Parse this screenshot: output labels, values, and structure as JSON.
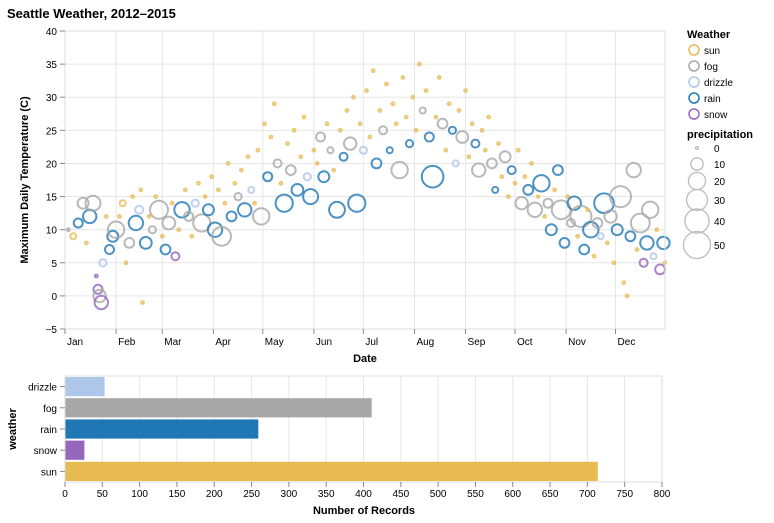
{
  "title": "Seattle Weather, 2012–2015",
  "chart_data": [
    {
      "type": "scatter",
      "title": "Seattle Weather, 2012–2015",
      "xlabel": "Date",
      "ylabel": "Maximum Daily Temperature (C)",
      "x_ticks": [
        "Jan",
        "Feb",
        "Mar",
        "Apr",
        "May",
        "Jun",
        "Jul",
        "Aug",
        "Sep",
        "Oct",
        "Nov",
        "Dec"
      ],
      "x_domain_days": [
        1,
        365
      ],
      "y_ticks": [
        -5,
        0,
        5,
        10,
        15,
        20,
        25,
        30,
        35,
        40
      ],
      "ylim": [
        -5,
        40
      ],
      "grid": true,
      "legend_position": "right",
      "color_legend": {
        "title": "Weather",
        "items": [
          {
            "label": "sun",
            "color": "#e7ba52"
          },
          {
            "label": "fog",
            "color": "#a7a7a7"
          },
          {
            "label": "drizzle",
            "color": "#aec7e8"
          },
          {
            "label": "rain",
            "color": "#1f77b4"
          },
          {
            "label": "snow",
            "color": "#9467bd"
          }
        ]
      },
      "size_legend": {
        "title": "precipitation",
        "values": [
          0,
          10,
          20,
          30,
          40,
          50
        ],
        "labels": [
          "0",
          "10",
          "20",
          "30",
          "40",
          "50"
        ]
      },
      "points": [
        [
          3,
          10,
          0,
          "fog"
        ],
        [
          6,
          9,
          2,
          "sun"
        ],
        [
          9,
          11,
          5,
          "rain"
        ],
        [
          12,
          14,
          8,
          "fog"
        ],
        [
          14,
          8,
          0,
          "sun"
        ],
        [
          16,
          12,
          12,
          "rain"
        ],
        [
          18,
          14,
          15,
          "fog"
        ],
        [
          20,
          3,
          0,
          "snow"
        ],
        [
          21,
          1,
          5,
          "snow"
        ],
        [
          22,
          0,
          10,
          "fog"
        ],
        [
          23,
          -1,
          12,
          "snow"
        ],
        [
          24,
          5,
          3,
          "drizzle"
        ],
        [
          26,
          12,
          0,
          "sun"
        ],
        [
          28,
          7,
          5,
          "rain"
        ],
        [
          30,
          9,
          8,
          "rain"
        ],
        [
          32,
          10,
          18,
          "fog"
        ],
        [
          34,
          12,
          0,
          "sun"
        ],
        [
          36,
          14,
          2,
          "sun"
        ],
        [
          38,
          5,
          0,
          "sun"
        ],
        [
          40,
          8,
          6,
          "fog"
        ],
        [
          42,
          15,
          0,
          "sun"
        ],
        [
          44,
          11,
          14,
          "rain"
        ],
        [
          46,
          13,
          4,
          "drizzle"
        ],
        [
          47,
          16,
          0,
          "sun"
        ],
        [
          48,
          -1,
          0,
          "sun"
        ],
        [
          50,
          8,
          9,
          "rain"
        ],
        [
          52,
          12,
          0,
          "sun"
        ],
        [
          54,
          10,
          3,
          "fog"
        ],
        [
          56,
          15,
          0,
          "sun"
        ],
        [
          58,
          13,
          22,
          "fog"
        ],
        [
          60,
          9,
          0,
          "sun"
        ],
        [
          62,
          7,
          6,
          "rain"
        ],
        [
          64,
          11,
          11,
          "fog"
        ],
        [
          66,
          14,
          0,
          "sun"
        ],
        [
          68,
          6,
          4,
          "snow"
        ],
        [
          70,
          10,
          0,
          "sun"
        ],
        [
          72,
          13,
          16,
          "rain"
        ],
        [
          74,
          16,
          0,
          "sun"
        ],
        [
          76,
          12,
          5,
          "fog"
        ],
        [
          78,
          9,
          0,
          "sun"
        ],
        [
          80,
          14,
          3,
          "drizzle"
        ],
        [
          82,
          17,
          0,
          "sun"
        ],
        [
          84,
          11,
          20,
          "fog"
        ],
        [
          86,
          15,
          0,
          "sun"
        ],
        [
          88,
          13,
          8,
          "rain"
        ],
        [
          90,
          18,
          0,
          "sun"
        ],
        [
          92,
          10,
          14,
          "rain"
        ],
        [
          94,
          16,
          0,
          "sun"
        ],
        [
          96,
          9,
          24,
          "fog"
        ],
        [
          98,
          14,
          0,
          "sun"
        ],
        [
          100,
          20,
          0,
          "sun"
        ],
        [
          102,
          12,
          6,
          "rain"
        ],
        [
          104,
          17,
          0,
          "sun"
        ],
        [
          106,
          15,
          3,
          "fog"
        ],
        [
          108,
          19,
          0,
          "sun"
        ],
        [
          110,
          13,
          12,
          "rain"
        ],
        [
          112,
          21,
          0,
          "sun"
        ],
        [
          114,
          16,
          2,
          "drizzle"
        ],
        [
          116,
          14,
          0,
          "sun"
        ],
        [
          118,
          22,
          0,
          "sun"
        ],
        [
          120,
          12,
          18,
          "fog"
        ],
        [
          122,
          26,
          0,
          "sun"
        ],
        [
          124,
          18,
          5,
          "rain"
        ],
        [
          126,
          24,
          0,
          "sun"
        ],
        [
          128,
          29,
          0,
          "sun"
        ],
        [
          130,
          20,
          4,
          "fog"
        ],
        [
          132,
          17,
          0,
          "sun"
        ],
        [
          134,
          14,
          20,
          "rain"
        ],
        [
          136,
          23,
          0,
          "sun"
        ],
        [
          138,
          19,
          6,
          "fog"
        ],
        [
          140,
          25,
          0,
          "sun"
        ],
        [
          142,
          16,
          9,
          "rain"
        ],
        [
          144,
          21,
          0,
          "sun"
        ],
        [
          146,
          27,
          0,
          "sun"
        ],
        [
          148,
          18,
          3,
          "drizzle"
        ],
        [
          150,
          15,
          15,
          "rain"
        ],
        [
          152,
          22,
          0,
          "sun"
        ],
        [
          154,
          20,
          0,
          "sun"
        ],
        [
          156,
          24,
          5,
          "fog"
        ],
        [
          158,
          18,
          8,
          "rain"
        ],
        [
          160,
          26,
          0,
          "sun"
        ],
        [
          162,
          22,
          2,
          "fog"
        ],
        [
          164,
          19,
          0,
          "sun"
        ],
        [
          166,
          13,
          17,
          "rain"
        ],
        [
          168,
          25,
          0,
          "sun"
        ],
        [
          170,
          21,
          4,
          "rain"
        ],
        [
          172,
          28,
          0,
          "sun"
        ],
        [
          174,
          23,
          10,
          "fog"
        ],
        [
          176,
          30,
          0,
          "sun"
        ],
        [
          178,
          14,
          20,
          "rain"
        ],
        [
          180,
          26,
          0,
          "sun"
        ],
        [
          182,
          22,
          3,
          "drizzle"
        ],
        [
          184,
          31,
          0,
          "sun"
        ],
        [
          186,
          24,
          0,
          "sun"
        ],
        [
          188,
          34,
          0,
          "sun"
        ],
        [
          190,
          20,
          6,
          "rain"
        ],
        [
          192,
          28,
          0,
          "sun"
        ],
        [
          194,
          25,
          4,
          "fog"
        ],
        [
          196,
          32,
          0,
          "sun"
        ],
        [
          198,
          22,
          2,
          "rain"
        ],
        [
          200,
          29,
          0,
          "sun"
        ],
        [
          202,
          26,
          0,
          "sun"
        ],
        [
          204,
          19,
          18,
          "fog"
        ],
        [
          206,
          33,
          0,
          "sun"
        ],
        [
          208,
          27,
          0,
          "sun"
        ],
        [
          210,
          23,
          3,
          "rain"
        ],
        [
          212,
          30,
          0,
          "sun"
        ],
        [
          214,
          25,
          0,
          "sun"
        ],
        [
          216,
          35,
          0,
          "sun"
        ],
        [
          218,
          28,
          2,
          "fog"
        ],
        [
          220,
          31,
          0,
          "sun"
        ],
        [
          222,
          24,
          5,
          "rain"
        ],
        [
          224,
          18,
          32,
          "rain"
        ],
        [
          226,
          27,
          0,
          "sun"
        ],
        [
          228,
          33,
          0,
          "sun"
        ],
        [
          230,
          26,
          6,
          "fog"
        ],
        [
          232,
          22,
          0,
          "sun"
        ],
        [
          234,
          29,
          0,
          "sun"
        ],
        [
          236,
          25,
          3,
          "rain"
        ],
        [
          238,
          20,
          2,
          "drizzle"
        ],
        [
          240,
          28,
          0,
          "sun"
        ],
        [
          242,
          24,
          9,
          "fog"
        ],
        [
          244,
          31,
          0,
          "sun"
        ],
        [
          246,
          21,
          0,
          "sun"
        ],
        [
          248,
          26,
          0,
          "sun"
        ],
        [
          250,
          23,
          4,
          "rain"
        ],
        [
          252,
          19,
          12,
          "fog"
        ],
        [
          254,
          25,
          0,
          "sun"
        ],
        [
          256,
          22,
          0,
          "sun"
        ],
        [
          258,
          27,
          0,
          "sun"
        ],
        [
          260,
          20,
          6,
          "fog"
        ],
        [
          262,
          16,
          2,
          "rain"
        ],
        [
          264,
          23,
          0,
          "sun"
        ],
        [
          266,
          18,
          0,
          "sun"
        ],
        [
          268,
          21,
          8,
          "fog"
        ],
        [
          270,
          15,
          0,
          "sun"
        ],
        [
          272,
          19,
          4,
          "rain"
        ],
        [
          274,
          17,
          0,
          "sun"
        ],
        [
          276,
          22,
          0,
          "sun"
        ],
        [
          278,
          14,
          10,
          "fog"
        ],
        [
          280,
          18,
          0,
          "sun"
        ],
        [
          282,
          16,
          6,
          "rain"
        ],
        [
          284,
          20,
          0,
          "sun"
        ],
        [
          286,
          13,
          14,
          "fog"
        ],
        [
          288,
          15,
          0,
          "sun"
        ],
        [
          290,
          17,
          18,
          "rain"
        ],
        [
          292,
          12,
          0,
          "sun"
        ],
        [
          294,
          14,
          5,
          "fog"
        ],
        [
          296,
          10,
          8,
          "rain"
        ],
        [
          298,
          16,
          0,
          "sun"
        ],
        [
          300,
          19,
          6,
          "rain"
        ],
        [
          302,
          13,
          24,
          "fog"
        ],
        [
          304,
          8,
          6,
          "rain"
        ],
        [
          306,
          15,
          0,
          "sun"
        ],
        [
          308,
          11,
          4,
          "fog"
        ],
        [
          310,
          14,
          12,
          "rain"
        ],
        [
          312,
          9,
          0,
          "sun"
        ],
        [
          314,
          12,
          30,
          "fog"
        ],
        [
          316,
          7,
          6,
          "rain"
        ],
        [
          318,
          13,
          0,
          "sun"
        ],
        [
          320,
          10,
          16,
          "rain"
        ],
        [
          322,
          6,
          0,
          "sun"
        ],
        [
          324,
          11,
          6,
          "fog"
        ],
        [
          326,
          9,
          2,
          "drizzle"
        ],
        [
          328,
          14,
          26,
          "rain"
        ],
        [
          330,
          8,
          0,
          "sun"
        ],
        [
          332,
          12,
          10,
          "fog"
        ],
        [
          334,
          5,
          0,
          "sun"
        ],
        [
          336,
          10,
          8,
          "rain"
        ],
        [
          338,
          15,
          30,
          "fog"
        ],
        [
          340,
          2,
          0,
          "sun"
        ],
        [
          342,
          0,
          0,
          "sun"
        ],
        [
          344,
          9,
          6,
          "rain"
        ],
        [
          346,
          19,
          14,
          "fog"
        ],
        [
          348,
          7,
          0,
          "sun"
        ],
        [
          350,
          11,
          24,
          "fog"
        ],
        [
          352,
          5,
          4,
          "snow"
        ],
        [
          354,
          8,
          12,
          "rain"
        ],
        [
          356,
          13,
          18,
          "fog"
        ],
        [
          358,
          6,
          2,
          "drizzle"
        ],
        [
          360,
          10,
          0,
          "sun"
        ],
        [
          362,
          4,
          6,
          "snow"
        ],
        [
          364,
          8,
          10,
          "rain"
        ],
        [
          365,
          5,
          0,
          "sun"
        ]
      ]
    },
    {
      "type": "bar",
      "orientation": "horizontal",
      "xlabel": "Number of Records",
      "ylabel": "weather",
      "categories": [
        "drizzle",
        "fog",
        "rain",
        "snow",
        "sun"
      ],
      "values": [
        53,
        411,
        259,
        26,
        714
      ],
      "colors": [
        "#aec7e8",
        "#a7a7a7",
        "#1f77b4",
        "#9467bd",
        "#e7ba52"
      ],
      "x_ticks": [
        0,
        50,
        100,
        150,
        200,
        250,
        300,
        350,
        400,
        450,
        500,
        550,
        600,
        650,
        700,
        750,
        800
      ],
      "xlim": [
        0,
        800
      ],
      "grid": true
    }
  ]
}
